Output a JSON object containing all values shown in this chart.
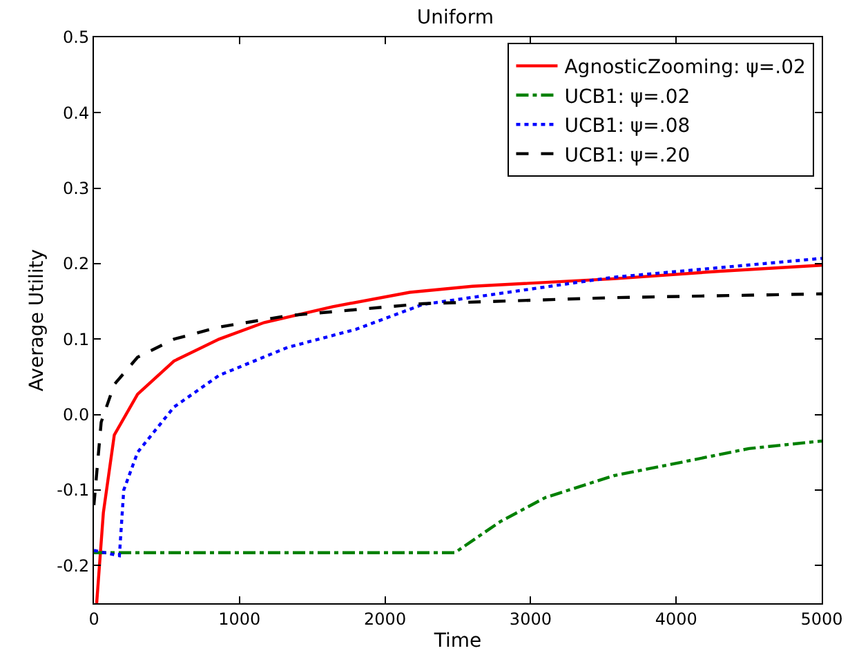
{
  "chart_data": {
    "type": "line",
    "title": "Uniform",
    "xlabel": "Time",
    "ylabel": "Average Utility",
    "xlim": [
      0,
      5000
    ],
    "xticks": [
      0,
      1000,
      2000,
      3000,
      4000,
      5000
    ],
    "ylim": [
      -0.25,
      0.5
    ],
    "yticks": [
      -0.2,
      -0.1,
      {
        "value": 0,
        "label": "0.0"
      },
      0.1,
      0.2,
      0.3,
      0.4,
      0.5
    ],
    "grid": false,
    "legend": "top right",
    "marker": "none",
    "series": [
      {
        "name": "AgnosticZooming: ψ=.02",
        "color": "#ff0000",
        "line_style": "solid",
        "x": [
          19,
          65,
          140,
          300,
          550,
          860,
          1170,
          1640,
          2170,
          2600,
          3570,
          4300,
          5000
        ],
        "values": [
          -0.25,
          -0.13,
          -0.027,
          0.027,
          0.071,
          0.1,
          0.122,
          0.143,
          0.162,
          0.17,
          0.18,
          0.19,
          0.198
        ]
      },
      {
        "name": "UCB1: ψ=.02",
        "color": "#008000",
        "line_style": "dashdot",
        "x": [
          0,
          1000,
          2000,
          2480,
          2790,
          3100,
          3570,
          4040,
          4500,
          5000
        ],
        "values": [
          -0.183,
          -0.183,
          -0.183,
          -0.183,
          -0.142,
          -0.11,
          -0.081,
          -0.063,
          -0.045,
          -0.035
        ]
      },
      {
        "name": "UCB1: ψ=.08",
        "color": "#0000ff",
        "line_style": "dotted",
        "x": [
          0,
          175,
          205,
          300,
          550,
          860,
          1330,
          1800,
          2260,
          3570,
          5000
        ],
        "values": [
          -0.18,
          -0.187,
          -0.1,
          -0.05,
          0.01,
          0.052,
          0.089,
          0.113,
          0.146,
          0.182,
          0.207
        ]
      },
      {
        "name": "UCB1: ψ=.20",
        "color": "#000000",
        "line_style": "dashed",
        "x": [
          0,
          50,
          140,
          300,
          550,
          860,
          1330,
          2260,
          3570,
          5000
        ],
        "values": [
          -0.12,
          -0.01,
          0.04,
          0.076,
          0.1,
          0.116,
          0.131,
          0.147,
          0.155,
          0.16
        ]
      }
    ]
  }
}
